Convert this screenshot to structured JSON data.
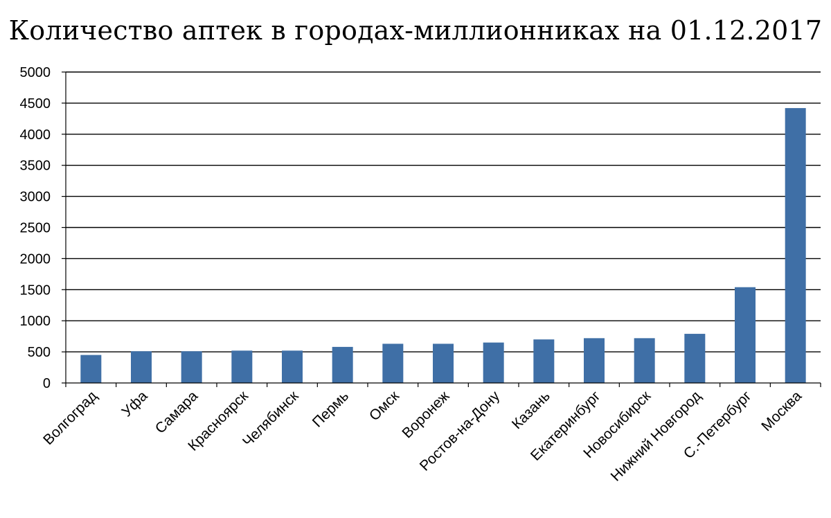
{
  "chart_data": {
    "type": "bar",
    "title": "Количество аптек в городах-миллионниках на 01.12.2017",
    "xlabel": "",
    "ylabel": "",
    "categories": [
      "Волгоград",
      "Уфа",
      "Самара",
      "Красноярск",
      "Челябинск",
      "Пермь",
      "Омск",
      "Воронеж",
      "Ростов-на-Дону",
      "Казань",
      "Екатеринбург",
      "Новосибирск",
      "Нижний Новгород",
      "С.-Петербург",
      "Москва"
    ],
    "values": [
      450,
      510,
      510,
      520,
      520,
      580,
      630,
      630,
      650,
      700,
      720,
      720,
      790,
      1540,
      4420
    ],
    "ylim": [
      0,
      5000
    ],
    "yticks": [
      "0",
      "500",
      "1000",
      "1500",
      "2000",
      "2500",
      "3000",
      "3500",
      "4000",
      "4500",
      "5000"
    ],
    "grid": true,
    "legend": "none",
    "bar_color": "#3F6FA6"
  }
}
